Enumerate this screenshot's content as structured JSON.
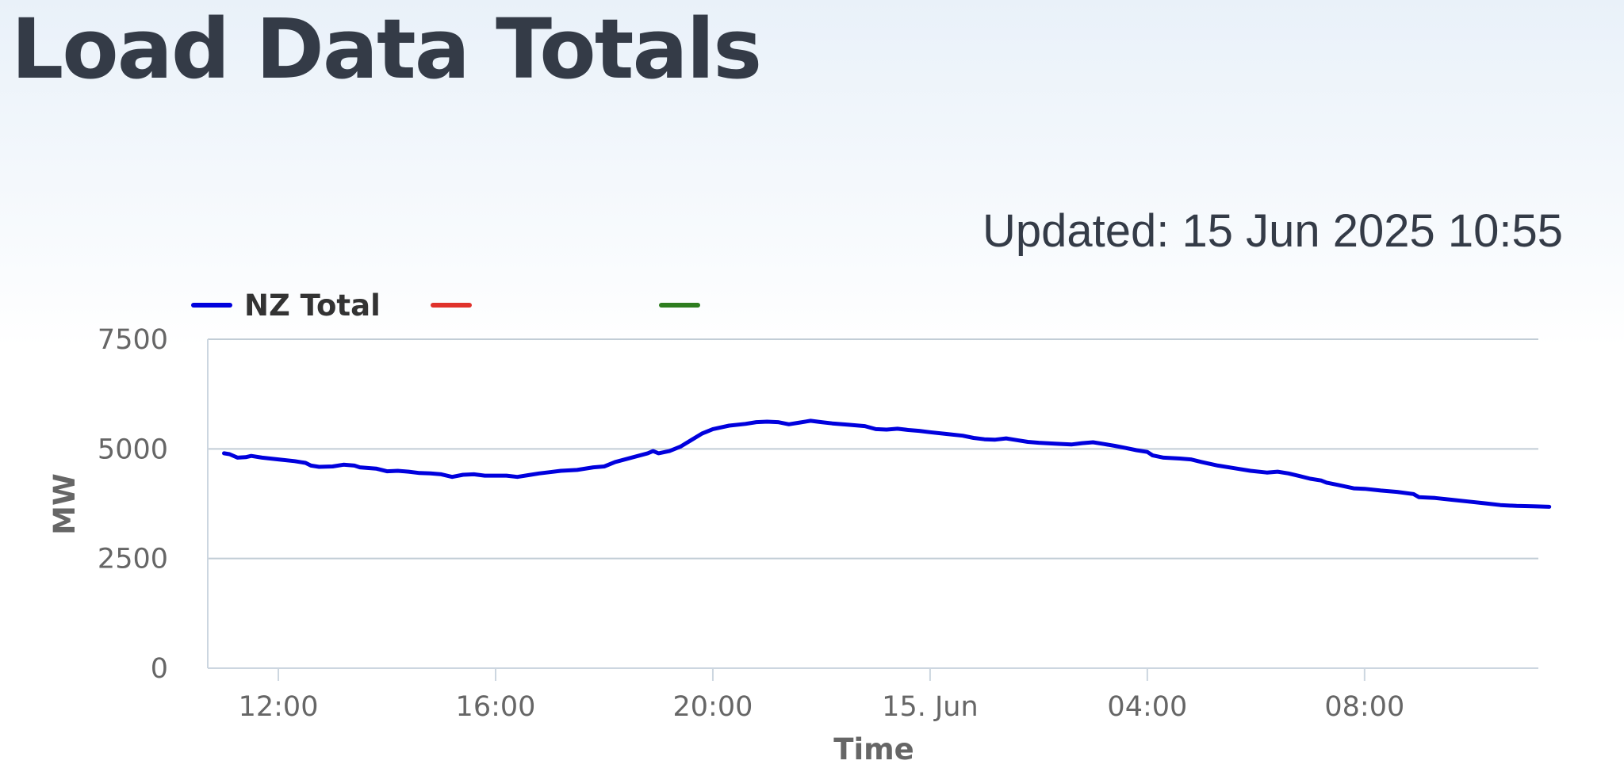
{
  "page": {
    "title": "Load Data Totals",
    "updated": "Updated: 15 Jun 2025 10:55"
  },
  "chart_data": {
    "type": "line",
    "xlabel": "Time",
    "ylabel": "MW",
    "ylim": [
      0,
      7500
    ],
    "yticks": [
      0,
      2500,
      5000,
      7500
    ],
    "xlim": [
      10.7,
      35.2
    ],
    "x_unit": "hours from 14 Jun 2025 00:00",
    "xticks": [
      {
        "x": 12,
        "label": "12:00"
      },
      {
        "x": 16,
        "label": "16:00"
      },
      {
        "x": 20,
        "label": "20:00"
      },
      {
        "x": 24,
        "label": "15. Jun"
      },
      {
        "x": 28,
        "label": "04:00"
      },
      {
        "x": 32,
        "label": "08:00"
      }
    ],
    "grid": true,
    "legend_position": "top-left",
    "series": [
      {
        "name": "NZ Total",
        "color": "#0000dd",
        "points": [
          [
            11.0,
            4900
          ],
          [
            11.1,
            4880
          ],
          [
            11.25,
            4800
          ],
          [
            11.4,
            4810
          ],
          [
            11.5,
            4840
          ],
          [
            11.7,
            4800
          ],
          [
            12.0,
            4760
          ],
          [
            12.3,
            4720
          ],
          [
            12.5,
            4680
          ],
          [
            12.6,
            4620
          ],
          [
            12.75,
            4590
          ],
          [
            13.0,
            4600
          ],
          [
            13.2,
            4640
          ],
          [
            13.4,
            4620
          ],
          [
            13.5,
            4580
          ],
          [
            13.8,
            4550
          ],
          [
            14.0,
            4490
          ],
          [
            14.2,
            4500
          ],
          [
            14.4,
            4480
          ],
          [
            14.6,
            4450
          ],
          [
            14.8,
            4440
          ],
          [
            15.0,
            4420
          ],
          [
            15.2,
            4360
          ],
          [
            15.4,
            4410
          ],
          [
            15.6,
            4420
          ],
          [
            15.8,
            4390
          ],
          [
            16.0,
            4390
          ],
          [
            16.2,
            4390
          ],
          [
            16.4,
            4360
          ],
          [
            16.6,
            4400
          ],
          [
            16.8,
            4440
          ],
          [
            17.0,
            4470
          ],
          [
            17.2,
            4500
          ],
          [
            17.5,
            4520
          ],
          [
            17.8,
            4580
          ],
          [
            18.0,
            4600
          ],
          [
            18.2,
            4700
          ],
          [
            18.5,
            4800
          ],
          [
            18.8,
            4900
          ],
          [
            18.9,
            4950
          ],
          [
            19.0,
            4900
          ],
          [
            19.2,
            4950
          ],
          [
            19.4,
            5050
          ],
          [
            19.6,
            5200
          ],
          [
            19.8,
            5350
          ],
          [
            20.0,
            5450
          ],
          [
            20.3,
            5530
          ],
          [
            20.6,
            5570
          ],
          [
            20.8,
            5610
          ],
          [
            21.0,
            5620
          ],
          [
            21.2,
            5610
          ],
          [
            21.4,
            5560
          ],
          [
            21.6,
            5600
          ],
          [
            21.8,
            5640
          ],
          [
            22.0,
            5610
          ],
          [
            22.2,
            5580
          ],
          [
            22.5,
            5550
          ],
          [
            22.8,
            5520
          ],
          [
            23.0,
            5450
          ],
          [
            23.2,
            5440
          ],
          [
            23.4,
            5460
          ],
          [
            23.6,
            5430
          ],
          [
            23.8,
            5410
          ],
          [
            24.0,
            5380
          ],
          [
            24.3,
            5340
          ],
          [
            24.6,
            5300
          ],
          [
            24.8,
            5250
          ],
          [
            25.0,
            5220
          ],
          [
            25.2,
            5210
          ],
          [
            25.4,
            5240
          ],
          [
            25.6,
            5200
          ],
          [
            25.8,
            5160
          ],
          [
            26.0,
            5140
          ],
          [
            26.3,
            5120
          ],
          [
            26.6,
            5100
          ],
          [
            26.8,
            5130
          ],
          [
            27.0,
            5150
          ],
          [
            27.2,
            5110
          ],
          [
            27.4,
            5070
          ],
          [
            27.6,
            5020
          ],
          [
            27.8,
            4970
          ],
          [
            28.0,
            4930
          ],
          [
            28.1,
            4850
          ],
          [
            28.3,
            4800
          ],
          [
            28.6,
            4780
          ],
          [
            28.8,
            4760
          ],
          [
            29.0,
            4700
          ],
          [
            29.3,
            4620
          ],
          [
            29.6,
            4560
          ],
          [
            29.9,
            4500
          ],
          [
            30.2,
            4460
          ],
          [
            30.4,
            4480
          ],
          [
            30.6,
            4440
          ],
          [
            30.8,
            4380
          ],
          [
            31.0,
            4320
          ],
          [
            31.2,
            4280
          ],
          [
            31.3,
            4230
          ],
          [
            31.5,
            4180
          ],
          [
            31.8,
            4100
          ],
          [
            32.0,
            4090
          ],
          [
            32.3,
            4050
          ],
          [
            32.6,
            4020
          ],
          [
            32.9,
            3970
          ],
          [
            33.0,
            3900
          ],
          [
            33.3,
            3880
          ],
          [
            33.6,
            3840
          ],
          [
            33.9,
            3800
          ],
          [
            34.2,
            3760
          ],
          [
            34.5,
            3720
          ],
          [
            34.8,
            3700
          ],
          [
            35.1,
            3690
          ],
          [
            35.4,
            3680
          ]
        ]
      }
    ]
  }
}
